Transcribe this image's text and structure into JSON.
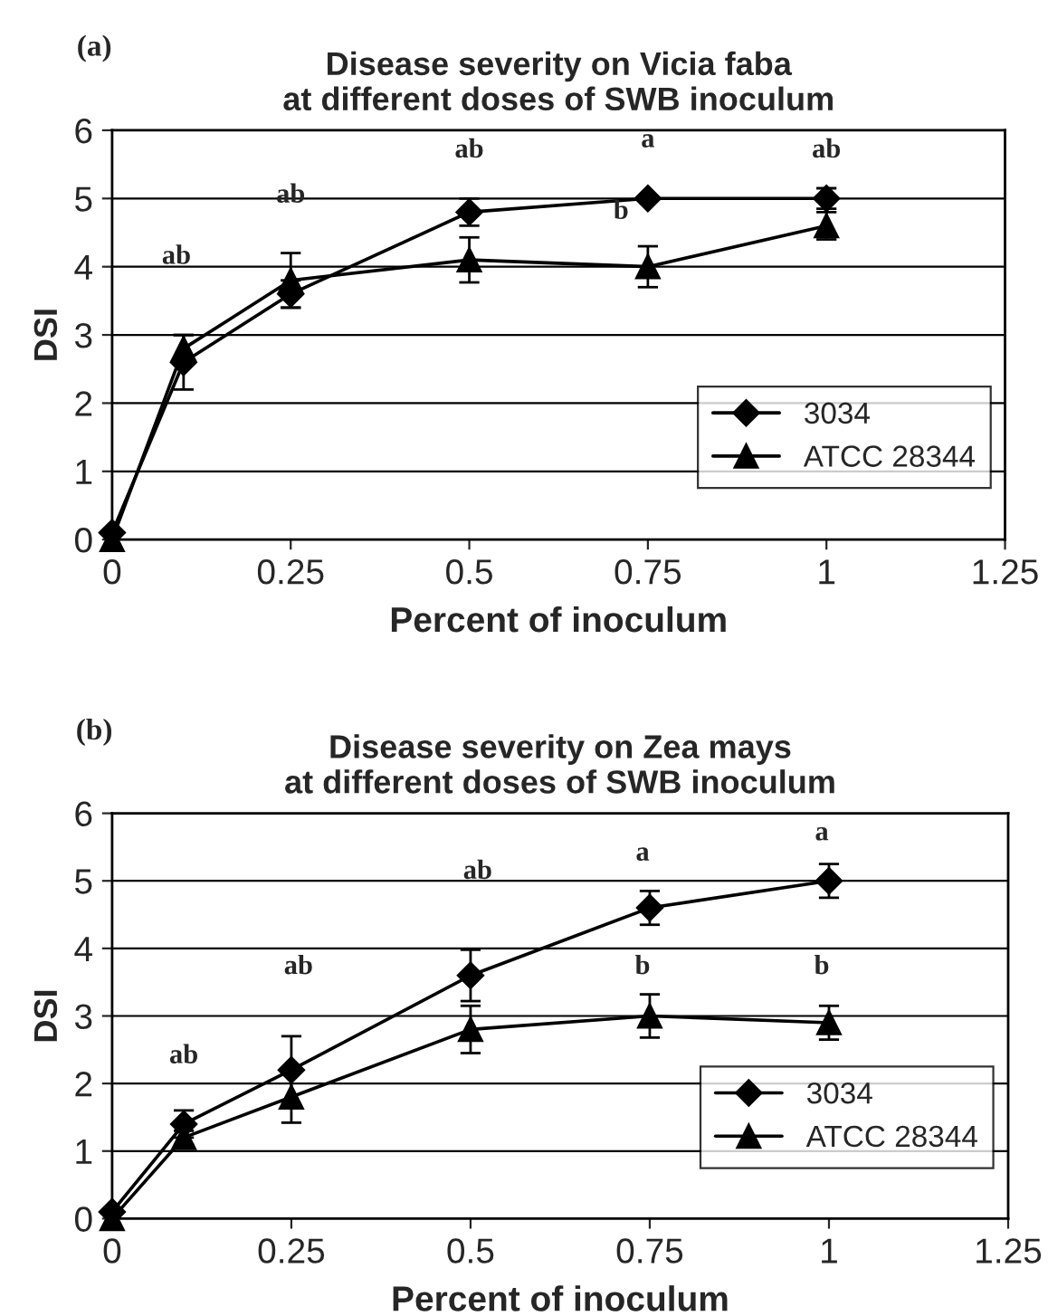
{
  "chart_data": [
    {
      "type": "line",
      "title": "Disease severity on Vicia faba\nat different doses of SWB inoculum",
      "xlabel": "Percent of inoculum",
      "ylabel": "DSI",
      "x": [
        0,
        0.1,
        0.25,
        0.5,
        0.75,
        1
      ],
      "series": [
        {
          "name": "3034",
          "color": "#000000",
          "marker": "diamond",
          "values": [
            0.1,
            2.6,
            3.6,
            4.8,
            5.0,
            5.0
          ],
          "errors": [
            null,
            0.4,
            0.2,
            0.2,
            null,
            0.15
          ]
        },
        {
          "name": "ATCC 28344",
          "color": "#000000",
          "marker": "triangle",
          "values": [
            0.0,
            2.8,
            3.8,
            4.1,
            4.0,
            4.6
          ],
          "errors": [
            null,
            0.2,
            0.4,
            0.33,
            0.3,
            0.2
          ]
        }
      ],
      "xlim": [
        0,
        1.25
      ],
      "xticks": [
        0,
        0.25,
        0.5,
        0.75,
        1,
        1.25
      ],
      "ylim": [
        0,
        6
      ],
      "yticks": [
        0,
        1,
        2,
        3,
        4,
        5,
        6
      ],
      "grid": "y",
      "legend": "lower right",
      "line_style": "solid",
      "annotations": [
        "(a)",
        "ab",
        "ab",
        "ab",
        "a",
        "b",
        "ab"
      ]
    },
    {
      "type": "line",
      "title": "Disease severity on Zea mays\nat different doses of SWB inoculum",
      "xlabel": "Percent of inoculum",
      "ylabel": "DSI",
      "x": [
        0,
        0.1,
        0.25,
        0.5,
        0.75,
        1
      ],
      "series": [
        {
          "name": "3034",
          "color": "#000000",
          "marker": "diamond",
          "values": [
            0.1,
            1.4,
            2.2,
            3.6,
            4.6,
            5.0
          ],
          "errors": [
            null,
            0.2,
            0.5,
            0.38,
            0.25,
            0.25
          ]
        },
        {
          "name": "ATCC 28344",
          "color": "#000000",
          "marker": "triangle",
          "values": [
            0.0,
            1.2,
            1.8,
            2.8,
            3.0,
            2.9
          ],
          "errors": [
            null,
            0.1,
            0.38,
            0.35,
            0.32,
            0.25
          ]
        }
      ],
      "xlim": [
        0,
        1.25
      ],
      "xticks": [
        0,
        0.25,
        0.5,
        0.75,
        1,
        1.25
      ],
      "ylim": [
        0,
        6
      ],
      "yticks": [
        0,
        1,
        2,
        3,
        4,
        5,
        6
      ],
      "grid": "y",
      "legend": "lower right",
      "line_style": "solid",
      "annotations": [
        "(b)",
        "ab",
        "ab",
        "ab",
        "a",
        "b",
        "a",
        "b"
      ]
    }
  ]
}
